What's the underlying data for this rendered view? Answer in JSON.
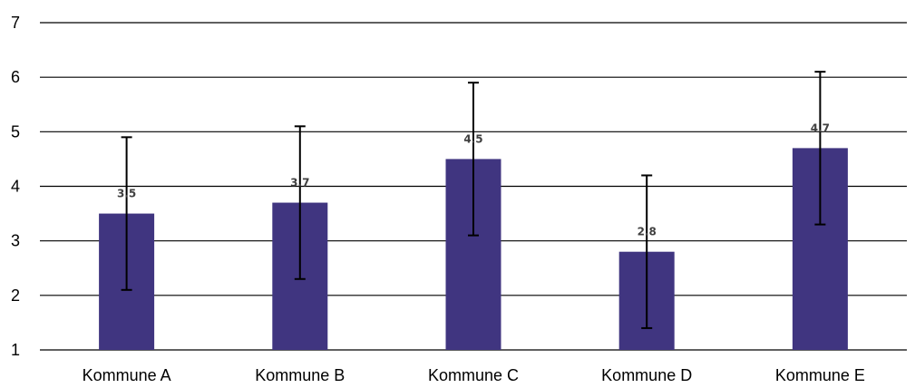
{
  "chart_data": {
    "type": "bar",
    "title": "",
    "xlabel": "",
    "ylabel": "",
    "categories": [
      "Kommune A",
      "Kommune B",
      "Kommune C",
      "Kommune D",
      "Kommune E"
    ],
    "values": [
      3.5,
      3.7,
      4.5,
      2.8,
      4.7
    ],
    "value_labels": [
      "3.5",
      "3.7",
      "4.5",
      "2.8",
      "4.7"
    ],
    "error_low": [
      2.1,
      2.3,
      3.1,
      1.4,
      3.3
    ],
    "error_high": [
      4.9,
      5.1,
      5.9,
      4.2,
      6.1
    ],
    "ylim": [
      1,
      7
    ],
    "yticks": [
      "1",
      "2",
      "3",
      "4",
      "5",
      "6",
      "7"
    ],
    "grid": true,
    "legend": "none",
    "colors": {
      "bar": "#403580",
      "error_bar": "#000000",
      "grid": "#000000"
    }
  }
}
